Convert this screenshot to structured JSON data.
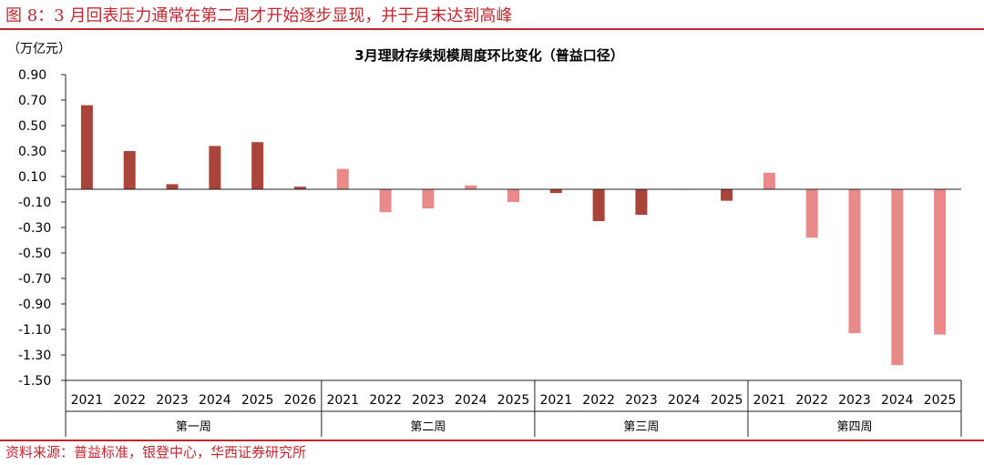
{
  "figure_title": "图 8：3 月回表压力通常在第二周才开始逐步显现，并于月末达到高峰",
  "source": "资料来源：普益标准，银登中心，华西证券研究所",
  "colors": {
    "accent": "#c0282e",
    "dark_bar": "#a9443a",
    "light_bar": "#e9898a"
  },
  "chart_data": {
    "type": "bar",
    "title": "3月理财存续规模周度环比变化（普益口径）",
    "ylabel": "（万亿元）",
    "ylim": [
      -1.5,
      0.9
    ],
    "yticks": [
      "0.90",
      "0.70",
      "0.50",
      "0.30",
      "0.10",
      "-0.10",
      "-0.30",
      "-0.50",
      "-0.70",
      "-0.90",
      "-1.10",
      "-1.30",
      "-1.50"
    ],
    "grid": false,
    "groups": [
      {
        "name": "第一周",
        "categories": [
          "2021",
          "2022",
          "2023",
          "2024",
          "2025",
          "2026"
        ],
        "values": [
          0.66,
          0.3,
          0.04,
          0.34,
          0.37,
          0.02
        ],
        "style": "dark"
      },
      {
        "name": "第二周",
        "categories": [
          "2021",
          "2022",
          "2023",
          "2024",
          "2025"
        ],
        "values": [
          0.16,
          -0.18,
          -0.15,
          0.03,
          -0.1
        ],
        "style": "light"
      },
      {
        "name": "第三周",
        "categories": [
          "2021",
          "2022",
          "2023",
          "2024",
          "2025"
        ],
        "values": [
          -0.03,
          -0.25,
          -0.2,
          0.0,
          -0.09
        ],
        "style": "dark"
      },
      {
        "name": "第四周",
        "categories": [
          "2021",
          "2022",
          "2023",
          "2024",
          "2025"
        ],
        "values": [
          0.13,
          -0.38,
          -1.13,
          -1.38,
          -1.14
        ],
        "style": "light"
      }
    ]
  }
}
